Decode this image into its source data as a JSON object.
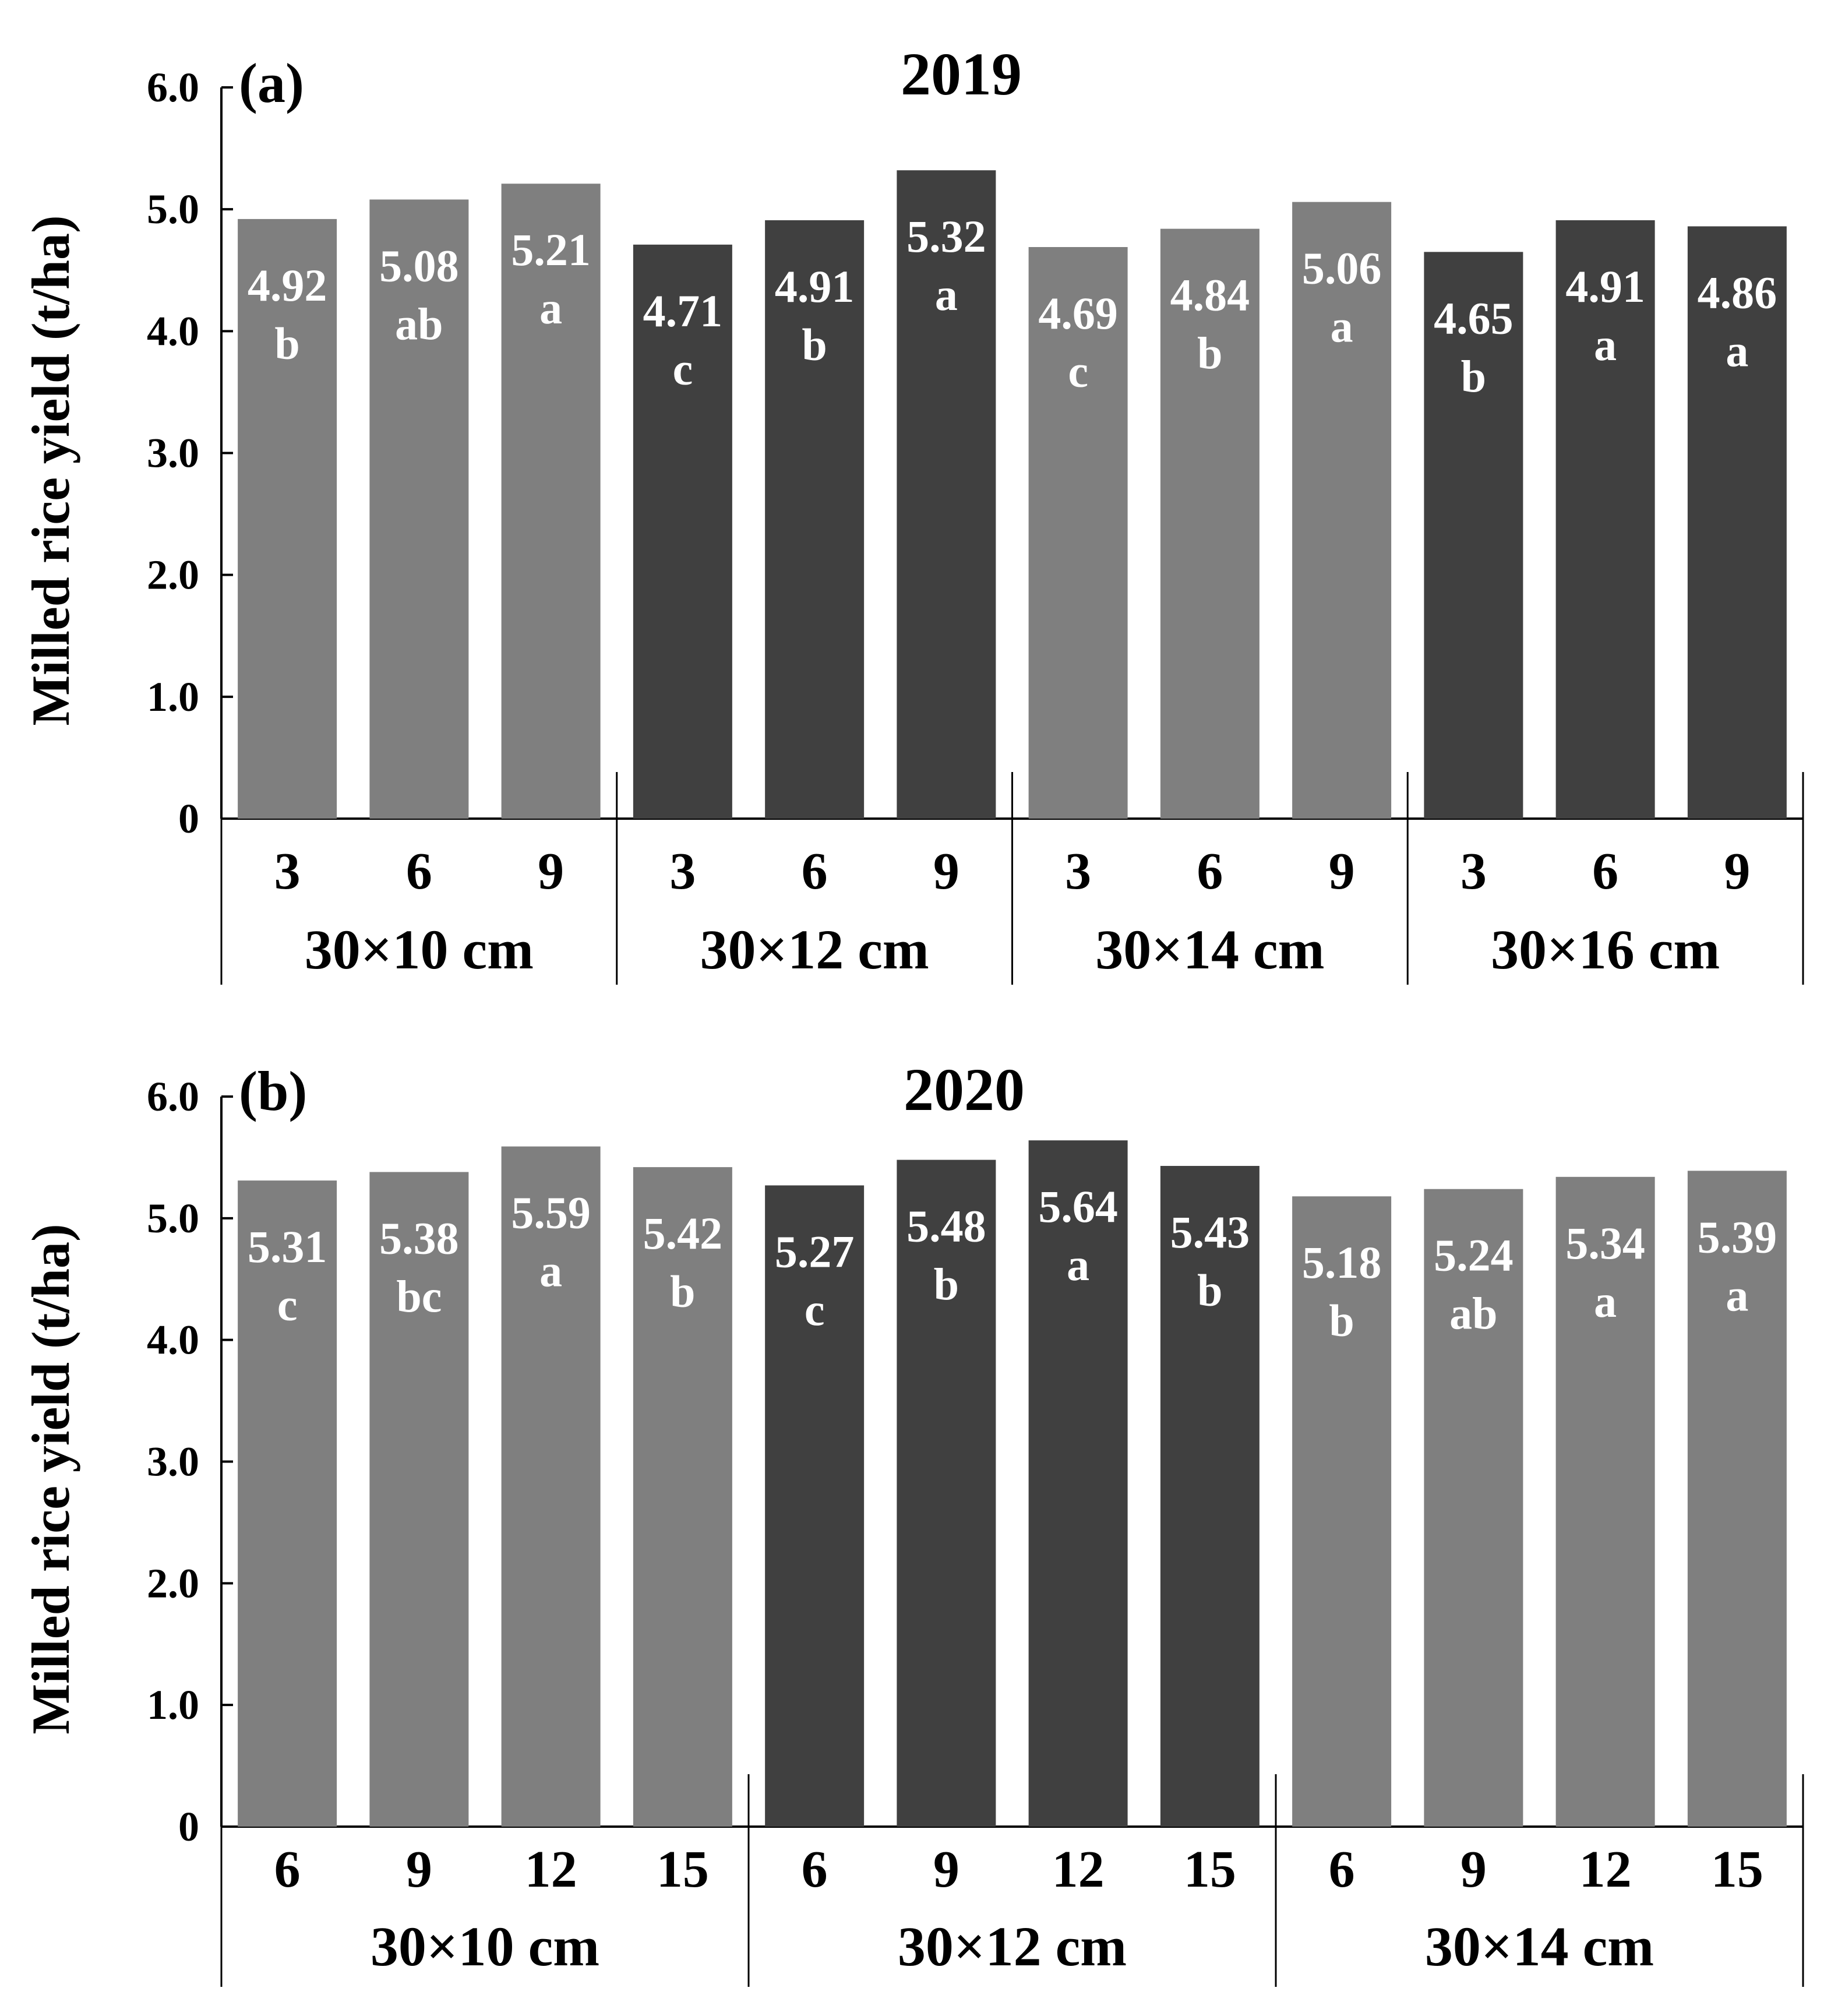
{
  "colors": {
    "light": "#7f7f7f",
    "dark": "#404040",
    "axis": "#000000",
    "label": "#ffffff"
  },
  "chart_data": [
    {
      "type": "bar",
      "panel_label": "(a)",
      "title": "2019",
      "ylabel": "Milled rice yield (t/ha)",
      "xlabel": "",
      "ylim": [
        0,
        6.0
      ],
      "yticks": [
        "0",
        "1.0",
        "2.0",
        "3.0",
        "4.0",
        "5.0",
        "6.0"
      ],
      "grid": false,
      "groups": [
        {
          "label": "30×10 cm",
          "shade": "light",
          "categories": [
            "3",
            "6",
            "9"
          ],
          "values": [
            4.92,
            5.08,
            5.21
          ],
          "value_labels": [
            "4.92",
            "5.08",
            "5.21"
          ],
          "letters": [
            "b",
            "ab",
            "a"
          ]
        },
        {
          "label": "30×12 cm",
          "shade": "dark",
          "categories": [
            "3",
            "6",
            "9"
          ],
          "values": [
            4.71,
            4.91,
            5.32
          ],
          "value_labels": [
            "4.71",
            "4.91",
            "5.32"
          ],
          "letters": [
            "c",
            "b",
            "a"
          ]
        },
        {
          "label": "30×14 cm",
          "shade": "light",
          "categories": [
            "3",
            "6",
            "9"
          ],
          "values": [
            4.69,
            4.84,
            5.06
          ],
          "value_labels": [
            "4.69",
            "4.84",
            "5.06"
          ],
          "letters": [
            "c",
            "b",
            "a"
          ]
        },
        {
          "label": "30×16 cm",
          "shade": "dark",
          "categories": [
            "3",
            "6",
            "9"
          ],
          "values": [
            4.65,
            4.91,
            4.86
          ],
          "value_labels": [
            "4.65",
            "4.91",
            "4.86"
          ],
          "letters": [
            "b",
            "a",
            "a"
          ]
        }
      ]
    },
    {
      "type": "bar",
      "panel_label": "(b)",
      "title": "2020",
      "ylabel": "Milled rice yield (t/ha)",
      "xlabel": "",
      "ylim": [
        0,
        6.0
      ],
      "yticks": [
        "0",
        "1.0",
        "2.0",
        "3.0",
        "4.0",
        "5.0",
        "6.0"
      ],
      "grid": false,
      "groups": [
        {
          "label": "30×10 cm",
          "shade": "light",
          "categories": [
            "6",
            "9",
            "12",
            "15"
          ],
          "values": [
            5.31,
            5.38,
            5.59,
            5.42
          ],
          "value_labels": [
            "5.31",
            "5.38",
            "5.59",
            "5.42"
          ],
          "letters": [
            "c",
            "bc",
            "a",
            "b"
          ]
        },
        {
          "label": "30×12 cm",
          "shade": "dark",
          "categories": [
            "6",
            "9",
            "12",
            "15"
          ],
          "values": [
            5.27,
            5.48,
            5.64,
            5.43
          ],
          "value_labels": [
            "5.27",
            "5.48",
            "5.64",
            "5.43"
          ],
          "letters": [
            "c",
            "b",
            "a",
            "b"
          ]
        },
        {
          "label": "30×14 cm",
          "shade": "light",
          "categories": [
            "6",
            "9",
            "12",
            "15"
          ],
          "values": [
            5.18,
            5.24,
            5.34,
            5.39
          ],
          "value_labels": [
            "5.18",
            "5.24",
            "5.34",
            "5.39"
          ],
          "letters": [
            "b",
            "ab",
            "a",
            "a"
          ]
        }
      ]
    }
  ]
}
